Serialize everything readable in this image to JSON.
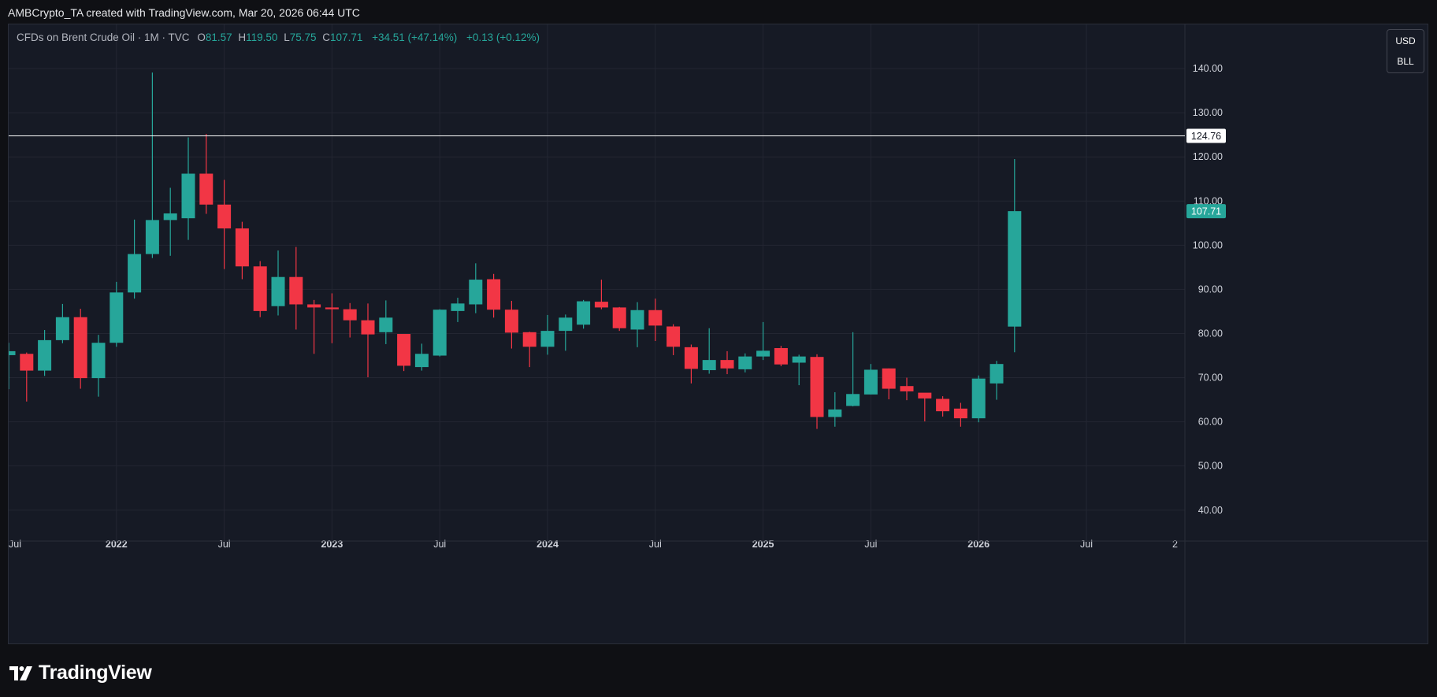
{
  "header": {
    "credit": "AMBCrypto_TA created with TradingView.com, Mar 20, 2026 06:44 UTC"
  },
  "legend": {
    "symbol": "CFDs on Brent Crude Oil · 1M · TVC",
    "o_label": "O",
    "o_value": "81.57",
    "h_label": "H",
    "h_value": "119.50",
    "l_label": "L",
    "l_value": "75.75",
    "c_label": "C",
    "c_value": "107.71",
    "change": "+34.51 (+47.14%)",
    "extra": "+0.13 (+0.12%)"
  },
  "unit_box": {
    "currency": "USD",
    "unit": "BLL"
  },
  "footer": {
    "brand": "TradingView"
  },
  "colors": {
    "up": "#26a69a",
    "down": "#f23645",
    "background": "#161a25",
    "grid": "#232632",
    "text": "#d1d4dc",
    "hline": "#ffffff"
  },
  "chart_data": {
    "type": "candlestick",
    "title": "CFDs on Brent Crude Oil · 1M · TVC",
    "interval": "1M",
    "ylim": [
      33,
      150
    ],
    "y_ticks": [
      "40.00",
      "50.00",
      "60.00",
      "70.00",
      "80.00",
      "90.00",
      "100.00",
      "110.00",
      "120.00",
      "130.00",
      "140.00"
    ],
    "x_ticks": [
      "Jul",
      "2022",
      "Jul",
      "2023",
      "Jul",
      "2024",
      "Jul",
      "2025",
      "Jul",
      "2026",
      "Jul",
      "2"
    ],
    "horizontal_line": {
      "value": 124.76,
      "label": "124.76"
    },
    "last_price": {
      "value": 107.71,
      "label": "107.71"
    },
    "grid": true,
    "candles": [
      {
        "date": "2021-07",
        "o": 75.1,
        "h": 77.9,
        "l": 67.4,
        "c": 76.0
      },
      {
        "date": "2021-08",
        "o": 75.4,
        "h": 75.7,
        "l": 64.6,
        "c": 71.6
      },
      {
        "date": "2021-09",
        "o": 71.6,
        "h": 80.8,
        "l": 70.4,
        "c": 78.5
      },
      {
        "date": "2021-10",
        "o": 78.5,
        "h": 86.7,
        "l": 77.8,
        "c": 83.7
      },
      {
        "date": "2021-11",
        "o": 83.7,
        "h": 85.6,
        "l": 67.5,
        "c": 69.9
      },
      {
        "date": "2021-12",
        "o": 69.9,
        "h": 79.7,
        "l": 65.7,
        "c": 77.9
      },
      {
        "date": "2022-01",
        "o": 77.9,
        "h": 91.7,
        "l": 77.0,
        "c": 89.3
      },
      {
        "date": "2022-02",
        "o": 89.3,
        "h": 105.8,
        "l": 87.9,
        "c": 98.0
      },
      {
        "date": "2022-03",
        "o": 98.0,
        "h": 139.1,
        "l": 97.1,
        "c": 105.7
      },
      {
        "date": "2022-04",
        "o": 105.7,
        "h": 113.0,
        "l": 97.6,
        "c": 107.2
      },
      {
        "date": "2022-05",
        "o": 106.1,
        "h": 124.4,
        "l": 101.2,
        "c": 116.2
      },
      {
        "date": "2022-06",
        "o": 116.2,
        "h": 125.2,
        "l": 107.1,
        "c": 109.2
      },
      {
        "date": "2022-07",
        "o": 109.2,
        "h": 114.8,
        "l": 94.6,
        "c": 103.8
      },
      {
        "date": "2022-08",
        "o": 103.8,
        "h": 105.3,
        "l": 92.3,
        "c": 95.2
      },
      {
        "date": "2022-09",
        "o": 95.2,
        "h": 96.4,
        "l": 83.7,
        "c": 85.1
      },
      {
        "date": "2022-10",
        "o": 86.2,
        "h": 98.8,
        "l": 84.1,
        "c": 92.8
      },
      {
        "date": "2022-11",
        "o": 92.8,
        "h": 99.6,
        "l": 80.9,
        "c": 86.6
      },
      {
        "date": "2022-12",
        "o": 86.6,
        "h": 87.6,
        "l": 75.4,
        "c": 85.9
      },
      {
        "date": "2023-01",
        "o": 85.9,
        "h": 89.1,
        "l": 77.8,
        "c": 85.5
      },
      {
        "date": "2023-02",
        "o": 85.5,
        "h": 86.9,
        "l": 79.1,
        "c": 83.0
      },
      {
        "date": "2023-03",
        "o": 83.0,
        "h": 86.8,
        "l": 70.1,
        "c": 79.8
      },
      {
        "date": "2023-04",
        "o": 80.3,
        "h": 87.5,
        "l": 77.6,
        "c": 83.6
      },
      {
        "date": "2023-05",
        "o": 79.9,
        "h": 79.8,
        "l": 71.5,
        "c": 72.7
      },
      {
        "date": "2023-06",
        "o": 72.4,
        "h": 77.7,
        "l": 71.6,
        "c": 75.4
      },
      {
        "date": "2023-07",
        "o": 75.0,
        "h": 85.5,
        "l": 74.8,
        "c": 85.4
      },
      {
        "date": "2023-08",
        "o": 85.1,
        "h": 88.1,
        "l": 82.6,
        "c": 86.8
      },
      {
        "date": "2023-09",
        "o": 86.6,
        "h": 95.9,
        "l": 84.6,
        "c": 92.2
      },
      {
        "date": "2023-10",
        "o": 92.3,
        "h": 93.5,
        "l": 83.6,
        "c": 85.4
      },
      {
        "date": "2023-11",
        "o": 85.4,
        "h": 87.4,
        "l": 76.6,
        "c": 80.2
      },
      {
        "date": "2023-12",
        "o": 80.3,
        "h": 80.4,
        "l": 72.4,
        "c": 77.0
      },
      {
        "date": "2024-01",
        "o": 77.0,
        "h": 84.2,
        "l": 75.2,
        "c": 80.6
      },
      {
        "date": "2024-02",
        "o": 80.6,
        "h": 84.3,
        "l": 76.1,
        "c": 83.6
      },
      {
        "date": "2024-03",
        "o": 82.0,
        "h": 87.6,
        "l": 81.1,
        "c": 87.3
      },
      {
        "date": "2024-04",
        "o": 87.2,
        "h": 92.2,
        "l": 85.5,
        "c": 85.9
      },
      {
        "date": "2024-05",
        "o": 85.9,
        "h": 86.0,
        "l": 80.6,
        "c": 81.2
      },
      {
        "date": "2024-06",
        "o": 80.9,
        "h": 87.1,
        "l": 76.9,
        "c": 85.3
      },
      {
        "date": "2024-07",
        "o": 85.3,
        "h": 87.9,
        "l": 78.3,
        "c": 81.8
      },
      {
        "date": "2024-08",
        "o": 81.6,
        "h": 82.1,
        "l": 75.1,
        "c": 77.0
      },
      {
        "date": "2024-09",
        "o": 76.9,
        "h": 77.5,
        "l": 68.7,
        "c": 72.0
      },
      {
        "date": "2024-10",
        "o": 71.7,
        "h": 81.2,
        "l": 70.9,
        "c": 74.0
      },
      {
        "date": "2024-11",
        "o": 74.0,
        "h": 76.0,
        "l": 70.8,
        "c": 72.1
      },
      {
        "date": "2024-12",
        "o": 71.9,
        "h": 75.5,
        "l": 71.2,
        "c": 74.8
      },
      {
        "date": "2025-01",
        "o": 74.8,
        "h": 82.6,
        "l": 74.0,
        "c": 76.1
      },
      {
        "date": "2025-02",
        "o": 76.7,
        "h": 77.2,
        "l": 72.6,
        "c": 73.0
      },
      {
        "date": "2025-03",
        "o": 73.4,
        "h": 75.2,
        "l": 68.3,
        "c": 74.8
      },
      {
        "date": "2025-04",
        "o": 74.7,
        "h": 75.3,
        "l": 58.4,
        "c": 61.1
      },
      {
        "date": "2025-05",
        "o": 61.1,
        "h": 66.7,
        "l": 58.9,
        "c": 62.8
      },
      {
        "date": "2025-06",
        "o": 63.6,
        "h": 80.3,
        "l": 63.5,
        "c": 66.3
      },
      {
        "date": "2025-07",
        "o": 66.2,
        "h": 73.1,
        "l": 66.2,
        "c": 71.8
      },
      {
        "date": "2025-08",
        "o": 72.1,
        "h": 72.1,
        "l": 65.1,
        "c": 67.5
      },
      {
        "date": "2025-09",
        "o": 68.1,
        "h": 70.0,
        "l": 64.9,
        "c": 66.9
      },
      {
        "date": "2025-10",
        "o": 66.6,
        "h": 66.2,
        "l": 60.1,
        "c": 65.3
      },
      {
        "date": "2025-11",
        "o": 65.2,
        "h": 65.8,
        "l": 61.2,
        "c": 62.4
      },
      {
        "date": "2025-12",
        "o": 63.0,
        "h": 64.3,
        "l": 58.9,
        "c": 60.8
      },
      {
        "date": "2026-01",
        "o": 60.8,
        "h": 70.5,
        "l": 59.9,
        "c": 69.8
      },
      {
        "date": "2026-02",
        "o": 68.7,
        "h": 73.8,
        "l": 65.0,
        "c": 73.1
      },
      {
        "date": "2026-03",
        "o": 81.57,
        "h": 119.5,
        "l": 75.75,
        "c": 107.71
      }
    ]
  }
}
